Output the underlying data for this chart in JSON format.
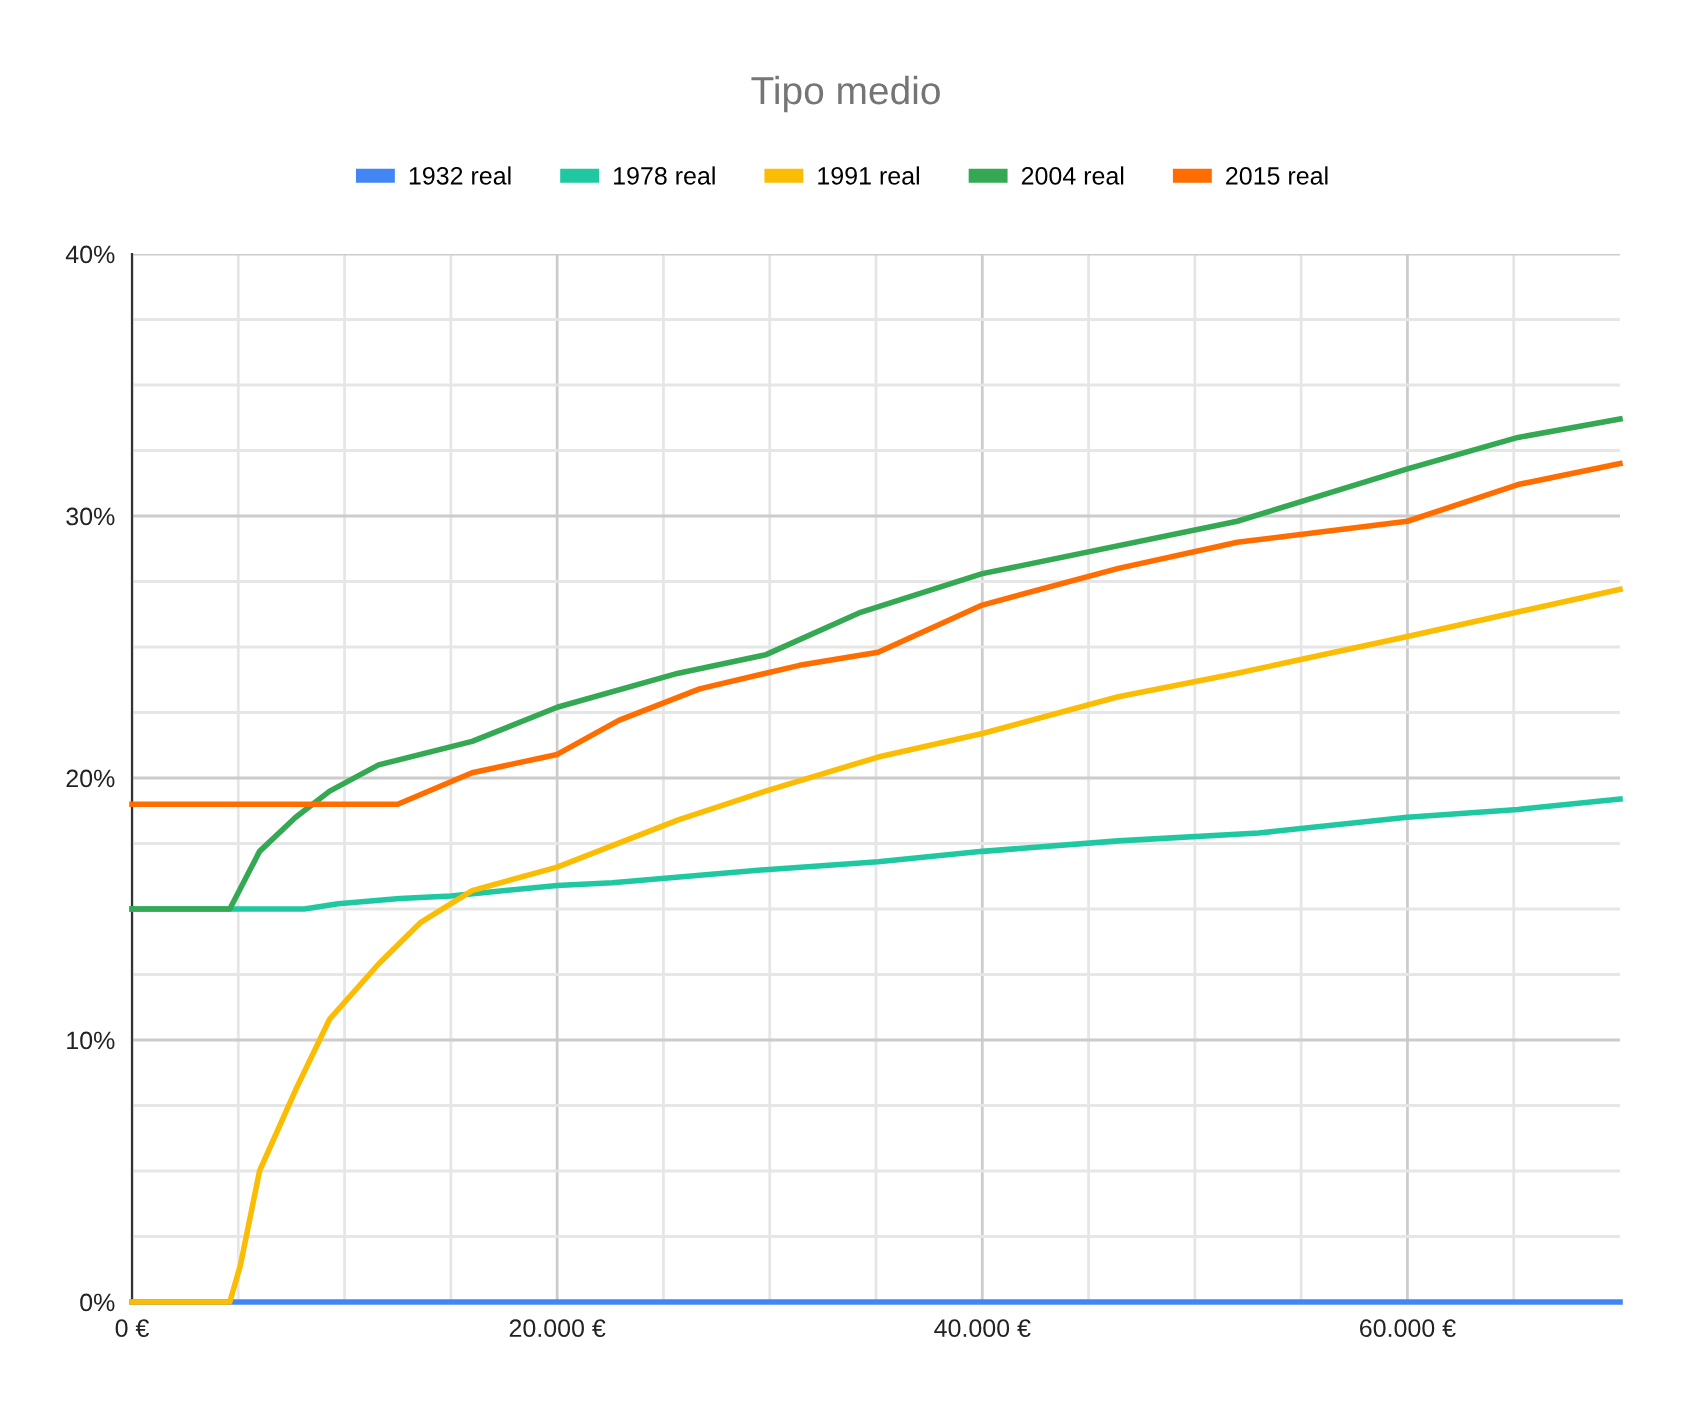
{
  "chart_data": {
    "type": "line",
    "title": "Tipo medio",
    "legend": "top",
    "grid": true,
    "marker": "none",
    "line_style": "solid",
    "xlim": [
      0,
      70000
    ],
    "ylim": [
      0,
      40
    ],
    "xticks": [
      {
        "value": 0,
        "label": "0 €"
      },
      {
        "value": 5000,
        "label": null
      },
      {
        "value": 10000,
        "label": null
      },
      {
        "value": 15000,
        "label": null
      },
      {
        "value": 20000,
        "label": "20.000 €"
      },
      {
        "value": 25000,
        "label": null
      },
      {
        "value": 30000,
        "label": null
      },
      {
        "value": 35000,
        "label": null
      },
      {
        "value": 40000,
        "label": "40.000 €"
      },
      {
        "value": 45000,
        "label": null
      },
      {
        "value": 50000,
        "label": null
      },
      {
        "value": 55000,
        "label": null
      },
      {
        "value": 60000,
        "label": "60.000 €"
      },
      {
        "value": 65000,
        "label": null
      }
    ],
    "yticks": [
      {
        "value": 0,
        "label": "0%"
      },
      {
        "value": 2.5,
        "label": null
      },
      {
        "value": 5,
        "label": null
      },
      {
        "value": 7.5,
        "label": null
      },
      {
        "value": 10,
        "label": "10%"
      },
      {
        "value": 12.5,
        "label": null
      },
      {
        "value": 15,
        "label": null
      },
      {
        "value": 17.5,
        "label": null
      },
      {
        "value": 20,
        "label": "20%"
      },
      {
        "value": 22.5,
        "label": null
      },
      {
        "value": 25,
        "label": null
      },
      {
        "value": 27.5,
        "label": null
      },
      {
        "value": 30,
        "label": "30%"
      },
      {
        "value": 32.5,
        "label": null
      },
      {
        "value": 35,
        "label": null
      },
      {
        "value": 37.5,
        "label": null
      },
      {
        "value": 40,
        "label": "40%"
      }
    ],
    "series": [
      {
        "name": "1932 real",
        "color": "#4285f4",
        "x": [
          0,
          70000
        ],
        "values": [
          0,
          0
        ]
      },
      {
        "name": "1978 real",
        "color": "#1fc8a0",
        "x": [
          0,
          4600,
          8100,
          9700,
          12600,
          15000,
          20000,
          22600,
          29800,
          35100,
          40000,
          46400,
          53000,
          60000,
          65200,
          70000
        ],
        "values": [
          15,
          15,
          15,
          15.2,
          15.4,
          15.5,
          15.9,
          16.0,
          16.5,
          16.8,
          17.2,
          17.6,
          17.9,
          18.5,
          18.8,
          19.2
        ]
      },
      {
        "name": "1991 real",
        "color": "#fbbc04",
        "x": [
          0,
          4600,
          5100,
          6000,
          7700,
          9300,
          11600,
          13600,
          16000,
          20000,
          25700,
          29800,
          35100,
          40000,
          46400,
          52000,
          60000,
          70000
        ],
        "values": [
          0,
          0,
          1.4,
          5.0,
          8.1,
          10.8,
          12.9,
          14.5,
          15.7,
          16.6,
          18.4,
          19.5,
          20.8,
          21.7,
          23.1,
          24.0,
          25.4,
          27.2
        ]
      },
      {
        "name": "2004 real",
        "color": "#34a853",
        "x": [
          0,
          4600,
          6000,
          7700,
          9300,
          11600,
          16000,
          20000,
          25700,
          29800,
          34200,
          40000,
          52000,
          60000,
          65200,
          70000
        ],
        "values": [
          15,
          15,
          17.2,
          18.5,
          19.5,
          20.5,
          21.4,
          22.7,
          24.0,
          24.7,
          26.3,
          27.8,
          29.8,
          31.8,
          33.0,
          33.7
        ]
      },
      {
        "name": "2015 real",
        "color": "#ff6d01",
        "x": [
          0,
          12500,
          16000,
          20000,
          22900,
          26700,
          31400,
          35100,
          40000,
          46400,
          52000,
          60000,
          65200,
          70000
        ],
        "values": [
          19,
          19,
          20.2,
          20.9,
          22.2,
          23.4,
          24.3,
          24.8,
          26.6,
          28.0,
          29.0,
          29.8,
          31.2,
          32.0
        ]
      }
    ]
  }
}
